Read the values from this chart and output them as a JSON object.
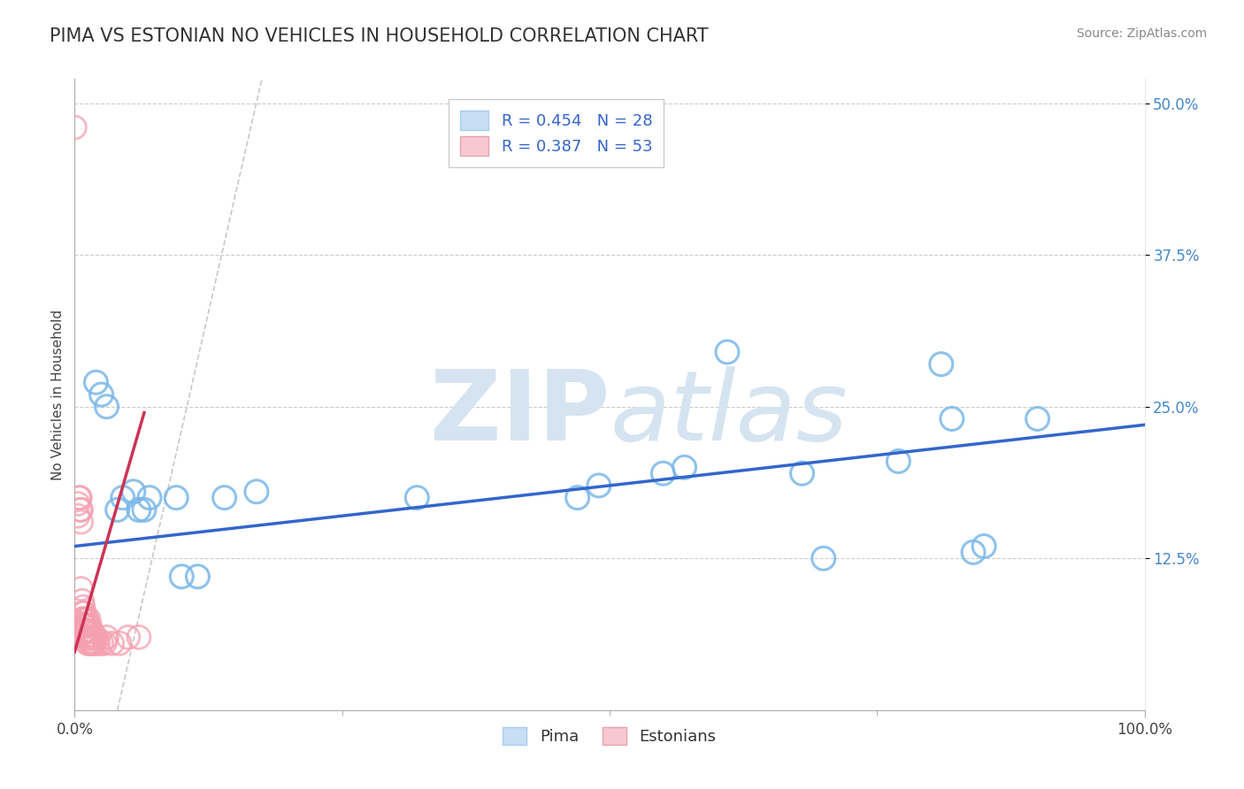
{
  "title": "PIMA VS ESTONIAN NO VEHICLES IN HOUSEHOLD CORRELATION CHART",
  "source": "Source: ZipAtlas.com",
  "xlabel": "",
  "ylabel": "No Vehicles in Household",
  "xlim": [
    0,
    1.0
  ],
  "ylim": [
    0,
    0.52
  ],
  "xtick_labels": [
    "0.0%",
    "100.0%"
  ],
  "xtick_positions": [
    0.0,
    1.0
  ],
  "ytick_labels": [
    "12.5%",
    "25.0%",
    "37.5%",
    "50.0%"
  ],
  "ytick_positions": [
    0.125,
    0.25,
    0.375,
    0.5
  ],
  "background_color": "#ffffff",
  "grid_color": "#cccccc",
  "pima_color": "#7ab8e8",
  "estonian_color": "#f4a0b0",
  "pima_r": 0.454,
  "pima_n": 28,
  "estonian_r": 0.387,
  "estonian_n": 53,
  "pima_line_color": "#3366cc",
  "estonian_line_color": "#cc3355",
  "diagonal_color": "#cccccc",
  "pima_scatter": [
    [
      0.02,
      0.27
    ],
    [
      0.025,
      0.26
    ],
    [
      0.03,
      0.25
    ],
    [
      0.04,
      0.165
    ],
    [
      0.045,
      0.175
    ],
    [
      0.055,
      0.18
    ],
    [
      0.06,
      0.165
    ],
    [
      0.065,
      0.165
    ],
    [
      0.07,
      0.175
    ],
    [
      0.095,
      0.175
    ],
    [
      0.1,
      0.11
    ],
    [
      0.115,
      0.11
    ],
    [
      0.14,
      0.175
    ],
    [
      0.17,
      0.18
    ],
    [
      0.32,
      0.175
    ],
    [
      0.47,
      0.175
    ],
    [
      0.49,
      0.185
    ],
    [
      0.55,
      0.195
    ],
    [
      0.57,
      0.2
    ],
    [
      0.61,
      0.295
    ],
    [
      0.68,
      0.195
    ],
    [
      0.7,
      0.125
    ],
    [
      0.77,
      0.205
    ],
    [
      0.81,
      0.285
    ],
    [
      0.82,
      0.24
    ],
    [
      0.84,
      0.13
    ],
    [
      0.85,
      0.135
    ],
    [
      0.9,
      0.24
    ]
  ],
  "estonian_scatter": [
    [
      0.0,
      0.48
    ],
    [
      0.003,
      0.17
    ],
    [
      0.003,
      0.16
    ],
    [
      0.004,
      0.175
    ],
    [
      0.005,
      0.175
    ],
    [
      0.005,
      0.165
    ],
    [
      0.006,
      0.165
    ],
    [
      0.006,
      0.155
    ],
    [
      0.006,
      0.1
    ],
    [
      0.007,
      0.09
    ],
    [
      0.007,
      0.08
    ],
    [
      0.007,
      0.075
    ],
    [
      0.008,
      0.085
    ],
    [
      0.008,
      0.075
    ],
    [
      0.008,
      0.07
    ],
    [
      0.009,
      0.08
    ],
    [
      0.009,
      0.07
    ],
    [
      0.009,
      0.065
    ],
    [
      0.01,
      0.075
    ],
    [
      0.01,
      0.07
    ],
    [
      0.01,
      0.065
    ],
    [
      0.01,
      0.06
    ],
    [
      0.011,
      0.075
    ],
    [
      0.011,
      0.065
    ],
    [
      0.011,
      0.06
    ],
    [
      0.012,
      0.07
    ],
    [
      0.012,
      0.065
    ],
    [
      0.012,
      0.055
    ],
    [
      0.013,
      0.075
    ],
    [
      0.013,
      0.06
    ],
    [
      0.013,
      0.055
    ],
    [
      0.014,
      0.07
    ],
    [
      0.014,
      0.06
    ],
    [
      0.015,
      0.065
    ],
    [
      0.015,
      0.06
    ],
    [
      0.015,
      0.055
    ],
    [
      0.016,
      0.065
    ],
    [
      0.016,
      0.055
    ],
    [
      0.017,
      0.06
    ],
    [
      0.017,
      0.055
    ],
    [
      0.018,
      0.06
    ],
    [
      0.018,
      0.055
    ],
    [
      0.019,
      0.06
    ],
    [
      0.019,
      0.055
    ],
    [
      0.02,
      0.06
    ],
    [
      0.022,
      0.055
    ],
    [
      0.025,
      0.055
    ],
    [
      0.028,
      0.055
    ],
    [
      0.03,
      0.06
    ],
    [
      0.035,
      0.055
    ],
    [
      0.042,
      0.055
    ],
    [
      0.05,
      0.06
    ],
    [
      0.06,
      0.06
    ]
  ],
  "watermark_zip": "ZIP",
  "watermark_atlas": "atlas",
  "watermark_color": "#d5e4f0",
  "watermark_fontsize": 80,
  "legend_pima_label": "Pima",
  "legend_estonian_label": "Estonians",
  "title_fontsize": 15,
  "axis_label_fontsize": 11,
  "tick_fontsize": 12,
  "source_fontsize": 10,
  "legend_fontsize": 13,
  "pima_line_start": 0.0,
  "pima_line_end": 1.0,
  "estonian_line_start": 0.0,
  "estonian_line_end": 0.065
}
